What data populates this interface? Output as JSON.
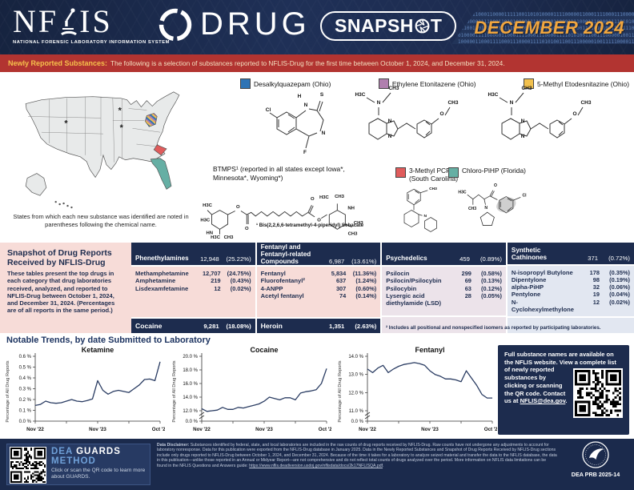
{
  "header": {
    "logo_text": "NFLIS",
    "logo_tagline": "NATIONAL FORENSIC LABORATORY INFORMATION SYSTEM",
    "product": "DRUG",
    "badge": "SNAPSHOT",
    "period": "DECEMBER 2024",
    "binary_pattern": "100111100011000011111001101010000111100000110001111000111000011110101001100111000001001111100001100000011110101001100111"
  },
  "banner": {
    "label": "Newly Reported Substances:",
    "text": "The following is a selection of substances reported to NFLIS-Drug for the first time between October 1, 2024, and December 31, 2024."
  },
  "map": {
    "caption": "States from which each new substance was identified are noted in parentheses following the chemical name.",
    "asterisk_states": [
      "Wyoming",
      "Minnesota",
      "Iowa"
    ]
  },
  "legend": [
    {
      "name": "Desalkylquazepam (Ohio)",
      "color": "#2e74b5"
    },
    {
      "name": "Ethylene Etonitazene (Ohio)",
      "color": "#b07fae"
    },
    {
      "name": "5-Methyl Etodesnitazine (Ohio)",
      "color": "#f2c14e"
    },
    {
      "name": "3-Methyl PCP (South Carolina)",
      "color": "#e05c5c"
    },
    {
      "name": "Chloro-PiHP (Florida)",
      "color": "#66afa4"
    }
  ],
  "btmps": {
    "label": "BTMPS¹ (reported in all states except Iowa*, Minnesota*, Wyoming*)",
    "footnote": "¹ Bis(2,2,6,6-tetramethyl-4-piperidyl) Sebacate"
  },
  "snapshot_panel": {
    "title": "Snapshot of Drug Reports Received by NFLIS-Drug",
    "description": "These tables present the top drugs in each category that drug laboratories received, analyzed, and reported to NFLIS-Drug between October 1, 2024, and December 31, 2024. (Percentages are of all reports in the same period.)"
  },
  "report_table": {
    "columns": [
      {
        "header": {
          "name": "Phenethylamines",
          "count": "12,948",
          "pct": "(25.22%)"
        },
        "rows": [
          {
            "name": "Methamphetamine",
            "count": "12,707",
            "pct": "(24.75%)"
          },
          {
            "name": "Amphetamine",
            "count": "219",
            "pct": "(0.43%)"
          },
          {
            "name": "Lisdexamfetamine",
            "count": "12",
            "pct": "(0.02%)"
          }
        ],
        "footer": {
          "name": "Cocaine",
          "count": "9,281",
          "pct": "(18.08%)"
        }
      },
      {
        "header": {
          "name": "Fentanyl and Fentanyl-related Compounds",
          "count": "6,987",
          "pct": "(13.61%)"
        },
        "rows": [
          {
            "name": "Fentanyl",
            "count": "5,834",
            "pct": "(11.36%)"
          },
          {
            "name": "Fluorofentanyl²",
            "count": "637",
            "pct": "(1.24%)"
          },
          {
            "name": "4-ANPP",
            "count": "307",
            "pct": "(0.60%)"
          },
          {
            "name": "Acetyl fentanyl",
            "count": "74",
            "pct": "(0.14%)"
          }
        ],
        "footer": {
          "name": "Heroin",
          "count": "1,351",
          "pct": "(2.63%)"
        }
      },
      {
        "header": {
          "name": "Psychedelics",
          "count": "459",
          "pct": "(0.89%)"
        },
        "rows": [
          {
            "name": "Psilocin",
            "count": "299",
            "pct": "(0.58%)"
          },
          {
            "name": "Psilocin/Psilocybin",
            "count": "69",
            "pct": "(0.13%)"
          },
          {
            "name": "Psilocybin",
            "count": "63",
            "pct": "(0.12%)"
          },
          {
            "name": "Lysergic acid diethylamide (LSD)",
            "count": "28",
            "pct": "(0.05%)"
          }
        ]
      },
      {
        "header": {
          "name": "Synthetic Cathinones",
          "count": "371",
          "pct": "(0.72%)"
        },
        "rows": [
          {
            "name": "N-isopropyl Butylone",
            "count": "178",
            "pct": "(0.35%)"
          },
          {
            "name": "Dipentylone",
            "count": "98",
            "pct": "(0.19%)"
          },
          {
            "name": "alpha-PiHP",
            "count": "32",
            "pct": "(0.06%)"
          },
          {
            "name": "Pentylone",
            "count": "19",
            "pct": "(0.04%)"
          },
          {
            "name": "N-Cyclohexylmethylone",
            "count": "12",
            "pct": "(0.02%)"
          }
        ]
      }
    ],
    "footnote": "² Includes all positional and nonspecified isomers as reported by participating laboratories."
  },
  "trends": {
    "heading": "Notable Trends, by date Submitted to Laboratory"
  },
  "chart_data": [
    {
      "type": "line",
      "title": "Ketamine",
      "ylabel": "Percentage of All Drug Reports",
      "x_tick_labels": [
        "Nov '22",
        "Nov '23",
        "Oct '24"
      ],
      "yticks": [
        "0.0 %",
        "0.1 %",
        "0.2 %",
        "0.3 %",
        "0.4 %",
        "0.5 %",
        "0.6 %"
      ],
      "ymin": 0,
      "ymax": 0.6,
      "zero_break": false,
      "grid": false,
      "line_color": "#2b3d63",
      "values": [
        0.145,
        0.155,
        0.185,
        0.17,
        0.165,
        0.17,
        0.185,
        0.2,
        0.185,
        0.18,
        0.19,
        0.205,
        0.375,
        0.285,
        0.25,
        0.275,
        0.285,
        0.275,
        0.265,
        0.3,
        0.335,
        0.385,
        0.39,
        0.375,
        0.55
      ]
    },
    {
      "type": "line",
      "title": "Cocaine",
      "ylabel": "Percentage of All Drug Reports",
      "x_tick_labels": [
        "Nov '22",
        "Nov '23",
        "Oct '24"
      ],
      "yticks": [
        "0.0 %",
        "12.0 %",
        "14.0 %",
        "16.0 %",
        "18.0 %",
        "20.0 %"
      ],
      "ymin": 12,
      "ymax": 20,
      "zero_break": true,
      "grid": false,
      "line_color": "#2b3d63",
      "values": [
        12.3,
        11.9,
        12.0,
        12.1,
        12.5,
        12.2,
        12.2,
        12.5,
        12.4,
        12.6,
        12.8,
        13.0,
        13.4,
        14.0,
        13.8,
        13.6,
        13.9,
        13.9,
        13.6,
        14.6,
        14.8,
        14.9,
        15.1,
        16.0,
        18.2
      ]
    },
    {
      "type": "line",
      "title": "Fentanyl",
      "ylabel": "Percentage of All Drug Reports",
      "x_tick_labels": [
        "Nov '22",
        "Nov '23",
        "Oct '24"
      ],
      "yticks": [
        "0.0 %",
        "11.0 %",
        "12.0 %",
        "13.0 %",
        "14.0 %"
      ],
      "ymin": 11,
      "ymax": 14,
      "zero_break": true,
      "grid": false,
      "line_color": "#2b3d63",
      "values": [
        13.3,
        13.1,
        13.35,
        13.5,
        13.1,
        13.3,
        13.45,
        13.55,
        13.6,
        13.65,
        13.6,
        13.5,
        13.2,
        13.0,
        12.9,
        12.75,
        12.75,
        12.7,
        12.6,
        13.2,
        12.8,
        12.4,
        11.9,
        11.7,
        11.7
      ]
    }
  ],
  "info_box": {
    "intro": "Full substance names are available on the NFLIS website. View a complete ",
    "body": "list of newly reported substances by clicking or scanning the QR code. Contact us at ",
    "link": "NFLIS@dea.gov",
    "suffix": "."
  },
  "guards": {
    "dea": "DEA",
    "guards": "GUARDS",
    "method": "METHOD",
    "text": "Click or scan the QR code to learn more about GUARDS."
  },
  "footer": {
    "disclaimer_label": "Data Disclaimer:",
    "disclaimer": " Substances identified by federal, state, and local laboratories are included in the raw counts of drug reports received by NFLIS-Drug. Raw counts have not undergone any adjustments to account for laboratory nonresponse. Data for this publication were exported from the NFLIS-Drug database in January 2025. Data in the Newly Reported Substances and Snapshot of Drug Reports Received by NFLIS-Drug sections include only drugs reported to NFLIS-Drug between October 1, 2024, and December 31, 2024. Because of the time it takes for a laboratory to analyze seized material and transfer the data to the NFLIS database, the data in this publication—unlike those reported in an Annual or Midyear Report—are not comprehensive and do not reflect total counts of drugs analyzed over the period. More information on NFLIS data limitations can be found in the NFLIS Questions and Answers guide: ",
    "link": "https://www.nflis.deadiversion.usdoj.gov/nflisdata/docs/2k17NFLISQA.pdf",
    "prb": "DEA PRB 2025-14"
  },
  "chem_labels": {
    "desalkylquazepam": [
      [
        "H",
        46,
        16
      ],
      [
        "N",
        54,
        27
      ],
      [
        "S",
        74,
        14
      ],
      [
        "Cl",
        7,
        33
      ],
      [
        "N",
        76,
        62
      ],
      [
        "F",
        53,
        86
      ]
    ],
    "ethylene_etonitazene": [
      [
        "H3C",
        10,
        16
      ],
      [
        "CH3",
        52,
        8
      ],
      [
        "N",
        33,
        26
      ],
      [
        "N",
        47,
        49
      ],
      [
        "N",
        47,
        68
      ],
      [
        "O",
        112,
        40
      ],
      [
        "CH3",
        126,
        26
      ]
    ],
    "methyl_etodesnitazine": [
      [
        "H3C",
        10,
        16
      ],
      [
        "CH3",
        52,
        8
      ],
      [
        "N",
        33,
        26
      ],
      [
        "N",
        47,
        49
      ],
      [
        "N",
        47,
        68
      ],
      [
        "O",
        112,
        40
      ],
      [
        "CH3",
        126,
        26
      ]
    ],
    "btmps": [
      [
        "H3C",
        10,
        22
      ],
      [
        "H3C",
        7,
        42
      ],
      [
        "HN",
        13,
        60
      ],
      [
        "H3C",
        21,
        66
      ],
      [
        "CH3",
        39,
        66
      ],
      [
        "O",
        52,
        24
      ],
      [
        "O",
        64,
        54
      ],
      [
        "O",
        154,
        13
      ],
      [
        "O",
        163,
        42
      ],
      [
        "H3C",
        170,
        11
      ],
      [
        "CH3",
        191,
        10
      ],
      [
        "NH",
        207,
        26
      ],
      [
        "CH3",
        217,
        46
      ],
      [
        "CH3",
        209,
        61
      ]
    ],
    "methyl_pcp": [
      [
        "CH3",
        64,
        12
      ],
      [
        "N",
        51,
        57
      ]
    ],
    "chloro_pihp": [
      [
        "H3C",
        8,
        20
      ],
      [
        "CH3",
        24,
        46
      ],
      [
        "O",
        61,
        9
      ],
      [
        "Cl",
        107,
        25
      ],
      [
        "N",
        46,
        45
      ]
    ]
  }
}
